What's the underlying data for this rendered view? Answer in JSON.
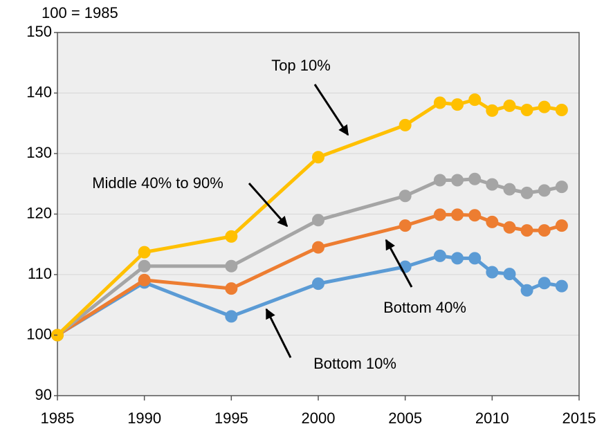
{
  "chart_data": {
    "type": "line",
    "ylabel": "100 = 1985",
    "x": [
      1985,
      1990,
      1995,
      2000,
      2005,
      2007,
      2008,
      2009,
      2010,
      2011,
      2012,
      2013,
      2014
    ],
    "series": [
      {
        "name": "Top 10%",
        "color": "#ffc000",
        "values": [
          100,
          113.7,
          116.3,
          129.4,
          134.7,
          138.4,
          138.1,
          138.9,
          137.1,
          137.9,
          137.2,
          137.7,
          137.2
        ]
      },
      {
        "name": "Middle 40% to 90%",
        "color": "#a5a5a5",
        "values": [
          100,
          111.4,
          111.4,
          119.0,
          123.0,
          125.6,
          125.6,
          125.8,
          124.9,
          124.1,
          123.5,
          123.9,
          124.5
        ]
      },
      {
        "name": "Bottom 40%",
        "color": "#ed7d31",
        "values": [
          100,
          109.1,
          107.7,
          114.5,
          118.1,
          119.9,
          119.9,
          119.8,
          118.7,
          117.8,
          117.3,
          117.3,
          118.1
        ]
      },
      {
        "name": "Bottom 10%",
        "color": "#5b9bd5",
        "values": [
          100,
          108.7,
          103.1,
          108.5,
          111.3,
          113.1,
          112.7,
          112.7,
          110.4,
          110.1,
          107.4,
          108.6,
          108.1
        ]
      }
    ],
    "xlim": [
      1985,
      2015
    ],
    "xticks": [
      1985,
      1990,
      1995,
      2000,
      2005,
      2010,
      2015
    ],
    "ylim": [
      90,
      150
    ],
    "yticks": [
      90,
      100,
      110,
      120,
      130,
      140,
      150
    ],
    "grid": true
  }
}
